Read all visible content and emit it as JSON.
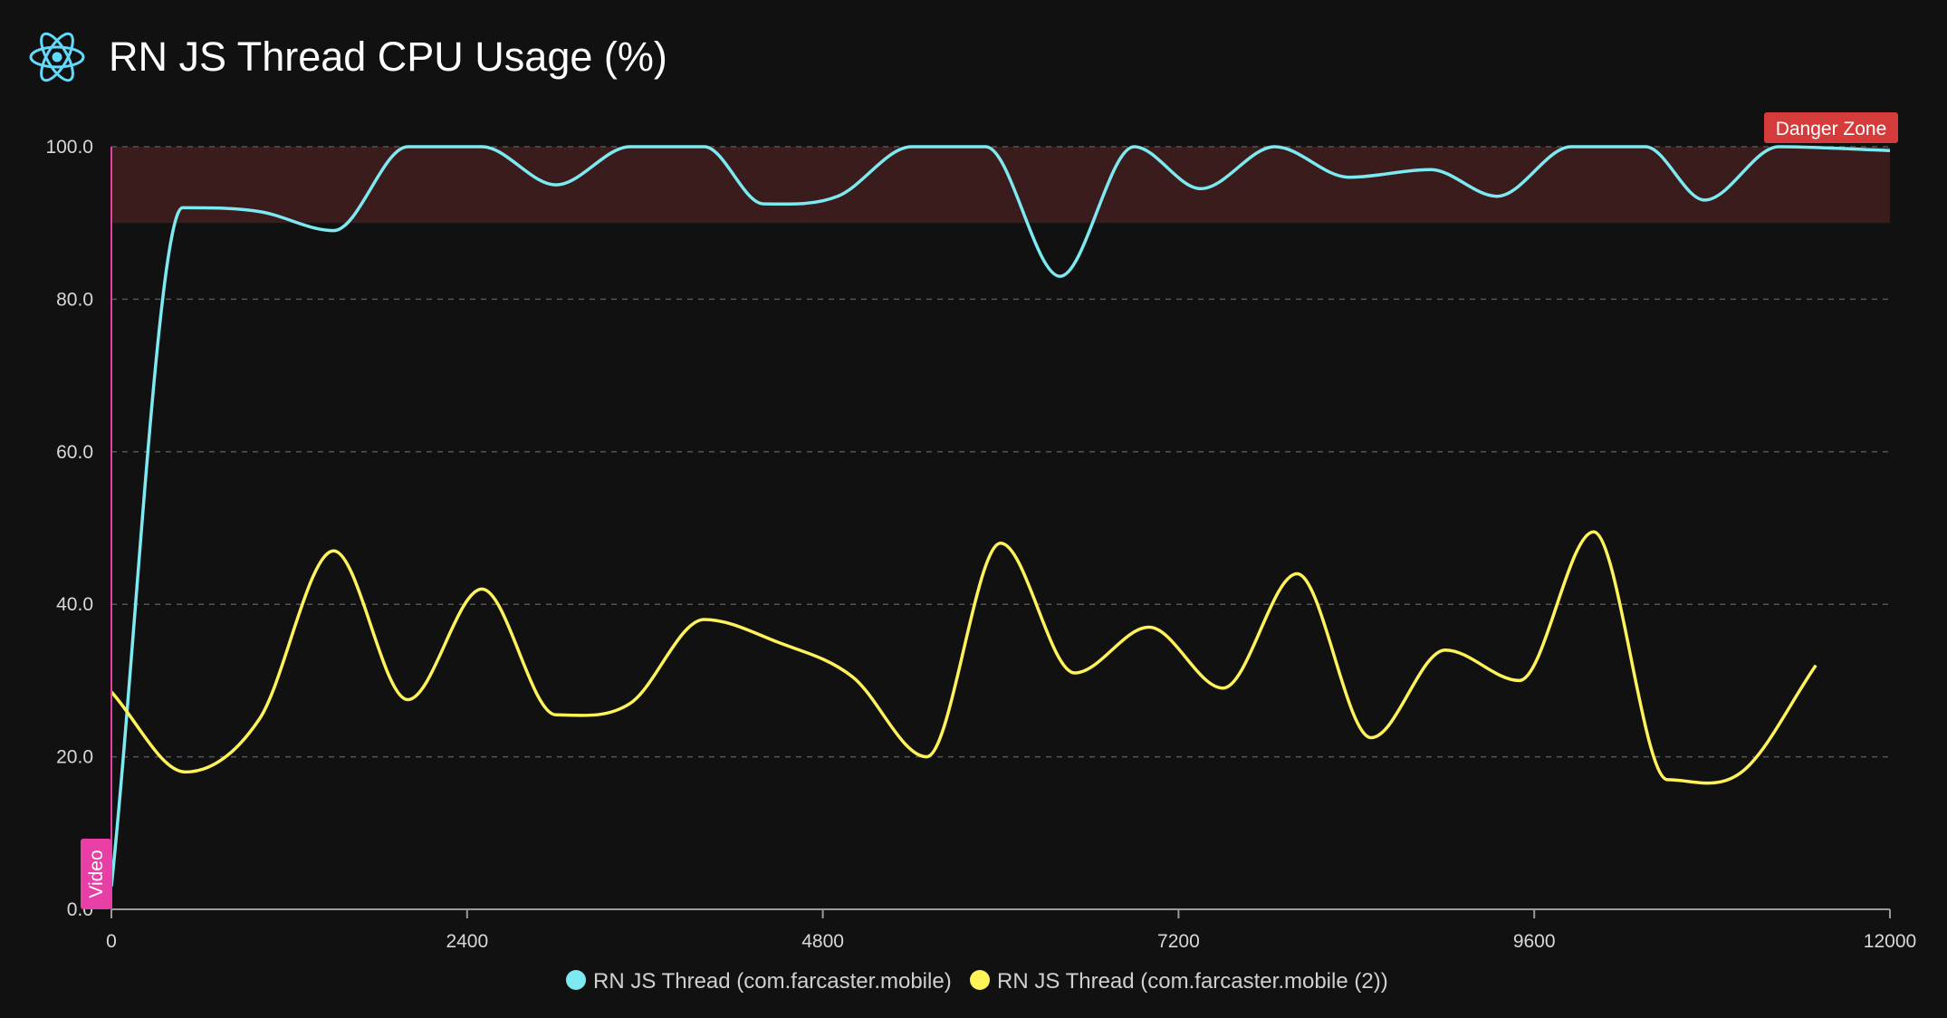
{
  "header": {
    "title": "RN JS Thread CPU Usage (%)",
    "logo_icon": "react-atom-icon"
  },
  "colors": {
    "background": "#111111",
    "series1": "#7de9f0",
    "series2": "#fff35a",
    "danger_fill": "#3a1c1c",
    "danger_badge": "#d63b3b",
    "video_marker": "#e83fa6",
    "grid": "#555555"
  },
  "chart_data": {
    "type": "line",
    "title": "RN JS Thread CPU Usage (%)",
    "xlabel": "",
    "ylabel": "",
    "xlim": [
      0,
      12000
    ],
    "ylim": [
      0,
      100
    ],
    "x_ticks": [
      0,
      2400,
      4800,
      7200,
      9600,
      12000
    ],
    "y_ticks": [
      "0.0",
      "20.0",
      "40.0",
      "60.0",
      "80.0",
      "100.0"
    ],
    "grid": true,
    "legend_position": "bottom",
    "annotations": {
      "danger_zone": {
        "label": "Danger Zone",
        "y_from": 90,
        "y_to": 100
      },
      "video_marker": {
        "label": "Video",
        "x": 0
      }
    },
    "series": [
      {
        "name": "RN JS Thread (com.farcaster.mobile)",
        "x": [
          0,
          480,
          1000,
          1500,
          2000,
          2500,
          3000,
          3500,
          4000,
          4400,
          4900,
          5400,
          5900,
          6400,
          6900,
          7350,
          7850,
          8350,
          8900,
          9350,
          9850,
          10350,
          10750,
          11250,
          12000
        ],
        "values": [
          3,
          92,
          91.5,
          89,
          100,
          100,
          95,
          100,
          100,
          92.5,
          93.5,
          100,
          100,
          83,
          100,
          94.5,
          100,
          96,
          97,
          93.5,
          100,
          100,
          93,
          100,
          99.5
        ]
      },
      {
        "name": "RN JS Thread (com.farcaster.mobile (2))",
        "x": [
          0,
          500,
          1000,
          1500,
          2000,
          2500,
          3000,
          3500,
          4000,
          4500,
          5000,
          5500,
          6000,
          6500,
          7000,
          7500,
          8000,
          8500,
          9000,
          9500,
          10000,
          10500,
          11000,
          11500
        ],
        "values": [
          28.5,
          18,
          25,
          47,
          27.5,
          42,
          25.5,
          27,
          38,
          35,
          30.5,
          20,
          48,
          31,
          37,
          29,
          44,
          22.5,
          34,
          30,
          49.5,
          17,
          18,
          32
        ]
      }
    ]
  }
}
